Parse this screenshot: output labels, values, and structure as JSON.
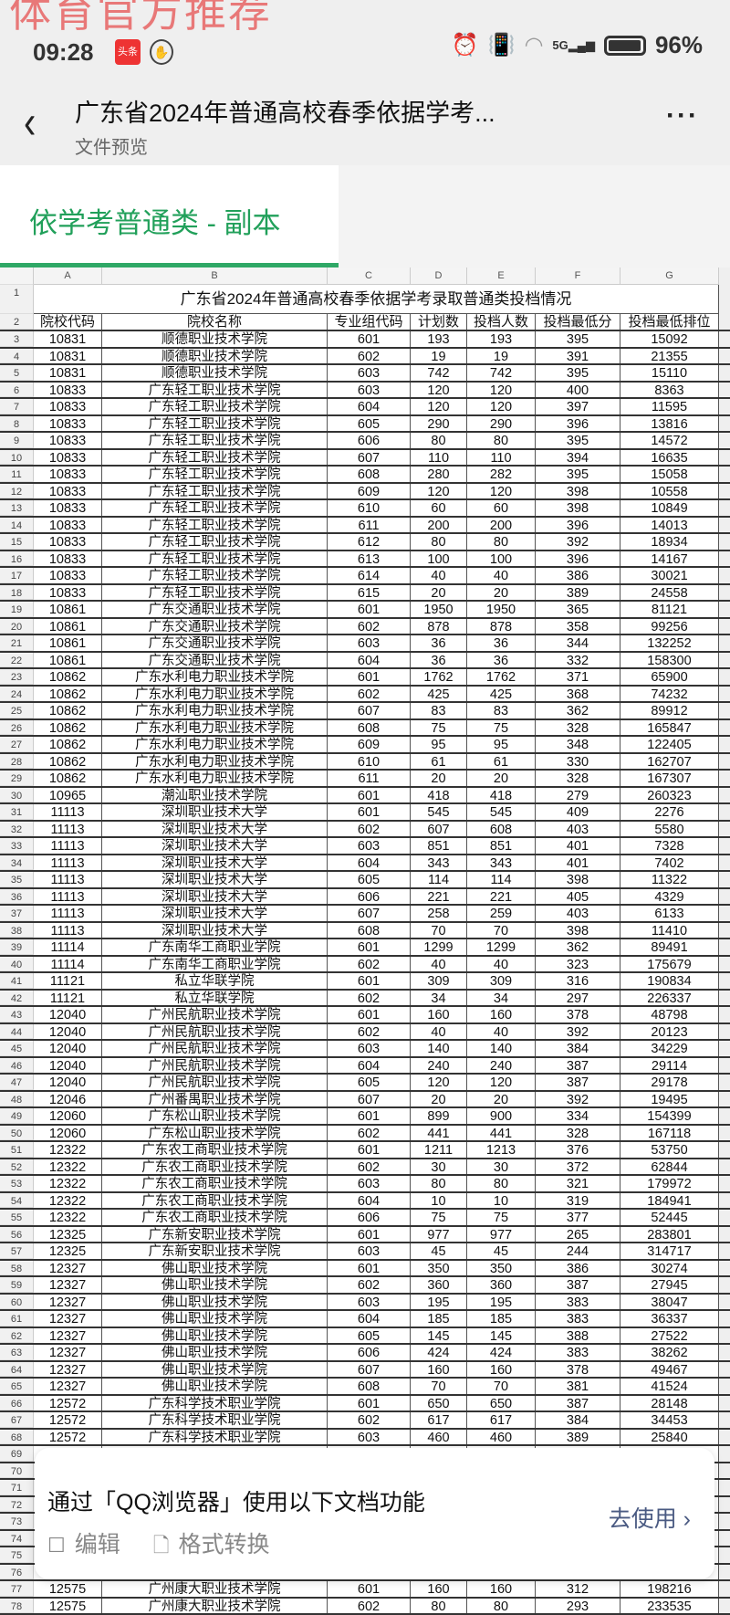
{
  "watermark": "体育官方推荐",
  "status": {
    "time": "09:28",
    "app_badge": "头条",
    "network": "5G",
    "battery": "96%"
  },
  "header": {
    "title": "广东省2024年普通高校春季依据学考...",
    "subtitle": "文件预览",
    "more": "···"
  },
  "sheet_tab": {
    "label": "依学考普通类 - 副本"
  },
  "columns": [
    "A",
    "B",
    "C",
    "D",
    "E",
    "F",
    "G"
  ],
  "table": {
    "title": "广东省2024年普通高校春季依据学考录取普通类投档情况",
    "headers": [
      "院校代码",
      "院校名称",
      "专业组代码",
      "计划数",
      "投档人数",
      "投档最低分",
      "投档最低排位"
    ],
    "rows": [
      [
        "3",
        "10831",
        "顺德职业技术学院",
        "601",
        "193",
        "193",
        "395",
        "15092"
      ],
      [
        "4",
        "10831",
        "顺德职业技术学院",
        "602",
        "19",
        "19",
        "391",
        "21355"
      ],
      [
        "5",
        "10831",
        "顺德职业技术学院",
        "603",
        "742",
        "742",
        "395",
        "15110"
      ],
      [
        "6",
        "10833",
        "广东轻工职业技术学院",
        "603",
        "120",
        "120",
        "400",
        "8363"
      ],
      [
        "7",
        "10833",
        "广东轻工职业技术学院",
        "604",
        "120",
        "120",
        "397",
        "11595"
      ],
      [
        "8",
        "10833",
        "广东轻工职业技术学院",
        "605",
        "290",
        "290",
        "396",
        "13816"
      ],
      [
        "9",
        "10833",
        "广东轻工职业技术学院",
        "606",
        "80",
        "80",
        "395",
        "14572"
      ],
      [
        "10",
        "10833",
        "广东轻工职业技术学院",
        "607",
        "110",
        "110",
        "394",
        "16635"
      ],
      [
        "11",
        "10833",
        "广东轻工职业技术学院",
        "608",
        "280",
        "282",
        "395",
        "15058"
      ],
      [
        "12",
        "10833",
        "广东轻工职业技术学院",
        "609",
        "120",
        "120",
        "398",
        "10558"
      ],
      [
        "13",
        "10833",
        "广东轻工职业技术学院",
        "610",
        "60",
        "60",
        "398",
        "10849"
      ],
      [
        "14",
        "10833",
        "广东轻工职业技术学院",
        "611",
        "200",
        "200",
        "396",
        "14013"
      ],
      [
        "15",
        "10833",
        "广东轻工职业技术学院",
        "612",
        "80",
        "80",
        "392",
        "18934"
      ],
      [
        "16",
        "10833",
        "广东轻工职业技术学院",
        "613",
        "100",
        "100",
        "396",
        "14167"
      ],
      [
        "17",
        "10833",
        "广东轻工职业技术学院",
        "614",
        "40",
        "40",
        "386",
        "30021"
      ],
      [
        "18",
        "10833",
        "广东轻工职业技术学院",
        "615",
        "20",
        "20",
        "389",
        "24558"
      ],
      [
        "19",
        "10861",
        "广东交通职业技术学院",
        "601",
        "1950",
        "1950",
        "365",
        "81121"
      ],
      [
        "20",
        "10861",
        "广东交通职业技术学院",
        "602",
        "878",
        "878",
        "358",
        "99256"
      ],
      [
        "21",
        "10861",
        "广东交通职业技术学院",
        "603",
        "36",
        "36",
        "344",
        "132252"
      ],
      [
        "22",
        "10861",
        "广东交通职业技术学院",
        "604",
        "36",
        "36",
        "332",
        "158300"
      ],
      [
        "23",
        "10862",
        "广东水利电力职业技术学院",
        "601",
        "1762",
        "1762",
        "371",
        "65900"
      ],
      [
        "24",
        "10862",
        "广东水利电力职业技术学院",
        "602",
        "425",
        "425",
        "368",
        "74232"
      ],
      [
        "25",
        "10862",
        "广东水利电力职业技术学院",
        "607",
        "83",
        "83",
        "362",
        "89912"
      ],
      [
        "26",
        "10862",
        "广东水利电力职业技术学院",
        "608",
        "75",
        "75",
        "328",
        "165847"
      ],
      [
        "27",
        "10862",
        "广东水利电力职业技术学院",
        "609",
        "95",
        "95",
        "348",
        "122405"
      ],
      [
        "28",
        "10862",
        "广东水利电力职业技术学院",
        "610",
        "61",
        "61",
        "330",
        "162707"
      ],
      [
        "29",
        "10862",
        "广东水利电力职业技术学院",
        "611",
        "20",
        "20",
        "328",
        "167307"
      ],
      [
        "30",
        "10965",
        "潮汕职业技术学院",
        "601",
        "418",
        "418",
        "279",
        "260323"
      ],
      [
        "31",
        "11113",
        "深圳职业技术大学",
        "601",
        "545",
        "545",
        "409",
        "2276"
      ],
      [
        "32",
        "11113",
        "深圳职业技术大学",
        "602",
        "607",
        "608",
        "403",
        "5580"
      ],
      [
        "33",
        "11113",
        "深圳职业技术大学",
        "603",
        "851",
        "851",
        "401",
        "7328"
      ],
      [
        "34",
        "11113",
        "深圳职业技术大学",
        "604",
        "343",
        "343",
        "401",
        "7402"
      ],
      [
        "35",
        "11113",
        "深圳职业技术大学",
        "605",
        "114",
        "114",
        "398",
        "11322"
      ],
      [
        "36",
        "11113",
        "深圳职业技术大学",
        "606",
        "221",
        "221",
        "405",
        "4329"
      ],
      [
        "37",
        "11113",
        "深圳职业技术大学",
        "607",
        "258",
        "259",
        "403",
        "6133"
      ],
      [
        "38",
        "11113",
        "深圳职业技术大学",
        "608",
        "70",
        "70",
        "398",
        "11410"
      ],
      [
        "39",
        "11114",
        "广东南华工商职业学院",
        "601",
        "1299",
        "1299",
        "362",
        "89491"
      ],
      [
        "40",
        "11114",
        "广东南华工商职业学院",
        "602",
        "40",
        "40",
        "323",
        "175679"
      ],
      [
        "41",
        "11121",
        "私立华联学院",
        "601",
        "309",
        "309",
        "316",
        "190834"
      ],
      [
        "42",
        "11121",
        "私立华联学院",
        "602",
        "34",
        "34",
        "297",
        "226337"
      ],
      [
        "43",
        "12040",
        "广州民航职业技术学院",
        "601",
        "160",
        "160",
        "378",
        "48798"
      ],
      [
        "44",
        "12040",
        "广州民航职业技术学院",
        "602",
        "40",
        "40",
        "392",
        "20123"
      ],
      [
        "45",
        "12040",
        "广州民航职业技术学院",
        "603",
        "140",
        "140",
        "384",
        "34229"
      ],
      [
        "46",
        "12040",
        "广州民航职业技术学院",
        "604",
        "240",
        "240",
        "387",
        "29114"
      ],
      [
        "47",
        "12040",
        "广州民航职业技术学院",
        "605",
        "120",
        "120",
        "387",
        "29178"
      ],
      [
        "48",
        "12046",
        "广州番禺职业技术学院",
        "607",
        "20",
        "20",
        "392",
        "19495"
      ],
      [
        "49",
        "12060",
        "广东松山职业技术学院",
        "601",
        "899",
        "900",
        "334",
        "154399"
      ],
      [
        "50",
        "12060",
        "广东松山职业技术学院",
        "602",
        "441",
        "441",
        "328",
        "167118"
      ],
      [
        "51",
        "12322",
        "广东农工商职业技术学院",
        "601",
        "1211",
        "1213",
        "376",
        "53750"
      ],
      [
        "52",
        "12322",
        "广东农工商职业技术学院",
        "602",
        "30",
        "30",
        "372",
        "62844"
      ],
      [
        "53",
        "12322",
        "广东农工商职业技术学院",
        "603",
        "80",
        "80",
        "321",
        "179972"
      ],
      [
        "54",
        "12322",
        "广东农工商职业技术学院",
        "604",
        "10",
        "10",
        "319",
        "184941"
      ],
      [
        "55",
        "12322",
        "广东农工商职业技术学院",
        "606",
        "75",
        "75",
        "377",
        "52445"
      ],
      [
        "56",
        "12325",
        "广东新安职业技术学院",
        "601",
        "977",
        "977",
        "265",
        "283801"
      ],
      [
        "57",
        "12325",
        "广东新安职业技术学院",
        "603",
        "45",
        "45",
        "244",
        "314717"
      ],
      [
        "58",
        "12327",
        "佛山职业技术学院",
        "601",
        "350",
        "350",
        "386",
        "30274"
      ],
      [
        "59",
        "12327",
        "佛山职业技术学院",
        "602",
        "360",
        "360",
        "387",
        "27945"
      ],
      [
        "60",
        "12327",
        "佛山职业技术学院",
        "603",
        "195",
        "195",
        "383",
        "38047"
      ],
      [
        "61",
        "12327",
        "佛山职业技术学院",
        "604",
        "185",
        "185",
        "383",
        "36337"
      ],
      [
        "62",
        "12327",
        "佛山职业技术学院",
        "605",
        "145",
        "145",
        "388",
        "27522"
      ],
      [
        "63",
        "12327",
        "佛山职业技术学院",
        "606",
        "424",
        "424",
        "383",
        "38262"
      ],
      [
        "64",
        "12327",
        "佛山职业技术学院",
        "607",
        "160",
        "160",
        "378",
        "49467"
      ],
      [
        "65",
        "12327",
        "佛山职业技术学院",
        "608",
        "70",
        "70",
        "381",
        "41524"
      ],
      [
        "66",
        "12572",
        "广东科学技术职业学院",
        "601",
        "650",
        "650",
        "387",
        "28148"
      ],
      [
        "67",
        "12572",
        "广东科学技术职业学院",
        "602",
        "617",
        "617",
        "384",
        "34453"
      ],
      [
        "68",
        "12572",
        "广东科学技术职业学院",
        "603",
        "460",
        "460",
        "389",
        "25840"
      ],
      [
        "69",
        "",
        "",
        "",
        "",
        "",
        "",
        ""
      ],
      [
        "70",
        "",
        "",
        "",
        "",
        "",
        "",
        ""
      ],
      [
        "71",
        "",
        "",
        "",
        "",
        "",
        "",
        ""
      ],
      [
        "72",
        "",
        "",
        "",
        "",
        "",
        "",
        ""
      ],
      [
        "73",
        "",
        "",
        "",
        "",
        "",
        "",
        ""
      ],
      [
        "74",
        "",
        "",
        "",
        "",
        "",
        "",
        ""
      ],
      [
        "75",
        "",
        "",
        "",
        "",
        "",
        "",
        ""
      ],
      [
        "76",
        "",
        "",
        "",
        "",
        "",
        "",
        ""
      ],
      [
        "77",
        "12575",
        "广州康大职业技术学院",
        "601",
        "160",
        "160",
        "312",
        "198216"
      ],
      [
        "78",
        "12575",
        "广州康大职业技术学院",
        "602",
        "80",
        "80",
        "293",
        "233535"
      ]
    ]
  },
  "popup": {
    "message": "通过「QQ浏览器」使用以下文档功能",
    "edit": "编辑",
    "convert": "格式转换",
    "go": "去使用 ›"
  }
}
